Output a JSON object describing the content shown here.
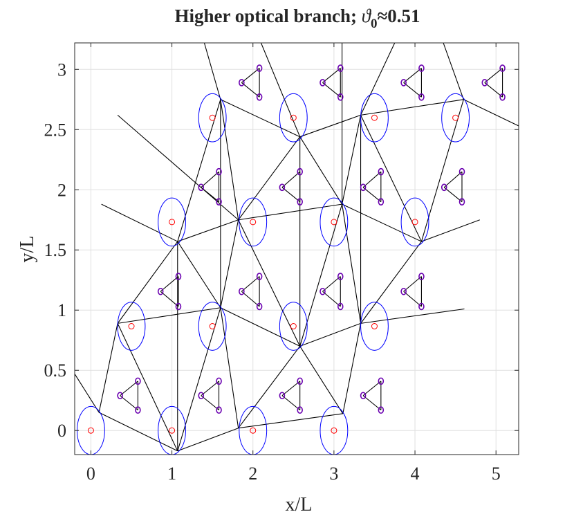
{
  "chart_data": {
    "type": "scatter",
    "title": {
      "text": "Higher optical branch; ",
      "symbol": "ϑ",
      "subscript": "0",
      "rest": "≈0.51"
    },
    "xlabel": "x/L",
    "ylabel": "y/L",
    "xlim": [
      -0.2,
      5.28
    ],
    "ylim": [
      -0.2,
      3.22
    ],
    "xticks": [
      0,
      1,
      2,
      3,
      4,
      5
    ],
    "yticks": [
      0,
      0.5,
      1,
      1.5,
      2,
      2.5,
      3
    ],
    "grid": true,
    "line_color": "#000000",
    "series": [
      {
        "marker": "ellipse",
        "color": "#0000ff",
        "rx": 0.17,
        "ry": 0.2,
        "x": [
          0,
          1,
          2,
          3,
          0.5,
          1.5,
          2.5,
          3.5,
          1,
          2,
          3,
          4,
          1.5,
          2.5,
          3.5,
          4.5
        ],
        "y": [
          0,
          0,
          0,
          0,
          0.866,
          0.866,
          0.866,
          0.866,
          1.732,
          1.732,
          1.732,
          1.732,
          2.598,
          2.598,
          2.598,
          2.598
        ]
      },
      {
        "marker": "circle",
        "color": "#ff0000",
        "x": [
          0,
          1,
          2,
          3,
          0.5,
          1.5,
          2.5,
          3.5,
          1,
          2,
          3,
          4,
          1.5,
          2.5,
          3.5,
          4.5
        ],
        "y": [
          0,
          0,
          0,
          0,
          0.866,
          0.866,
          0.866,
          0.866,
          1.732,
          1.732,
          1.732,
          1.732,
          2.598,
          2.598,
          2.598,
          2.598
        ]
      },
      {
        "marker": "dot",
        "color": "#6a00b0",
        "x": [
          0.36,
          0.58,
          0.58,
          1.36,
          1.58,
          1.58,
          2.36,
          2.58,
          2.58,
          3.36,
          3.58,
          3.58,
          0.86,
          1.08,
          1.08,
          1.86,
          2.08,
          2.08,
          2.86,
          3.08,
          3.08,
          3.86,
          4.08,
          4.08,
          1.36,
          1.58,
          1.58,
          2.36,
          2.58,
          2.58,
          3.36,
          3.58,
          3.58,
          4.36,
          4.58,
          4.58,
          1.86,
          2.08,
          2.08,
          2.86,
          3.08,
          3.08,
          3.86,
          4.08,
          4.08,
          4.86,
          5.08,
          5.08
        ],
        "y": [
          0.29,
          0.41,
          0.17,
          0.29,
          0.41,
          0.17,
          0.29,
          0.41,
          0.17,
          0.29,
          0.41,
          0.17,
          1.155,
          1.28,
          1.03,
          1.155,
          1.28,
          1.03,
          1.155,
          1.28,
          1.03,
          1.155,
          1.28,
          1.03,
          2.02,
          2.15,
          1.9,
          2.02,
          2.15,
          1.9,
          2.02,
          2.15,
          1.9,
          2.02,
          2.15,
          1.9,
          2.89,
          3.01,
          2.77,
          2.89,
          3.01,
          2.77,
          2.89,
          3.01,
          2.77,
          2.89,
          3.01,
          2.77
        ]
      }
    ],
    "segments": [
      [
        1.07,
        -0.17,
        0.1,
        0.15
      ],
      [
        1.07,
        -0.17,
        0.33,
        0.89
      ],
      [
        1.07,
        -0.17,
        1.82,
        0.02
      ],
      [
        1.07,
        -0.17,
        1.6,
        1.02
      ],
      [
        1.07,
        -0.17,
        1.07,
        1.57
      ],
      [
        0.1,
        0.15,
        0.33,
        0.89
      ],
      [
        0.1,
        0.15,
        -0.2,
        0.47
      ],
      [
        1.82,
        0.02,
        1.6,
        1.02
      ],
      [
        1.82,
        0.02,
        2.58,
        0.7
      ],
      [
        1.82,
        0.02,
        3.11,
        0.14
      ],
      [
        3.11,
        0.14,
        2.58,
        0.7
      ],
      [
        3.11,
        0.14,
        3.33,
        0.89
      ],
      [
        0.33,
        0.89,
        1.6,
        1.02
      ],
      [
        0.33,
        0.89,
        1.07,
        1.57
      ],
      [
        1.6,
        1.02,
        2.58,
        0.7
      ],
      [
        1.6,
        1.02,
        1.07,
        1.57
      ],
      [
        1.6,
        1.02,
        1.82,
        1.75
      ],
      [
        1.6,
        1.02,
        1.6,
        2.75
      ],
      [
        2.58,
        0.7,
        3.33,
        0.89
      ],
      [
        2.58,
        0.7,
        1.82,
        1.75
      ],
      [
        2.58,
        0.7,
        3.1,
        1.88
      ],
      [
        2.58,
        0.7,
        2.58,
        2.44
      ],
      [
        3.33,
        0.89,
        3.1,
        1.88
      ],
      [
        3.33,
        0.89,
        4.08,
        1.57
      ],
      [
        3.33,
        0.89,
        4.61,
        1.01
      ],
      [
        3.33,
        0.89,
        3.33,
        2.62
      ],
      [
        1.07,
        1.57,
        1.82,
        1.75
      ],
      [
        1.07,
        1.57,
        0.13,
        1.88
      ],
      [
        1.07,
        1.57,
        1.6,
        2.75
      ],
      [
        1.82,
        1.75,
        3.1,
        1.88
      ],
      [
        1.82,
        1.75,
        1.6,
        2.75
      ],
      [
        1.82,
        1.75,
        2.58,
        2.44
      ],
      [
        1.82,
        1.75,
        0.33,
        2.62
      ],
      [
        3.1,
        1.88,
        4.08,
        1.57
      ],
      [
        3.1,
        1.88,
        2.58,
        2.44
      ],
      [
        3.1,
        1.88,
        3.33,
        2.62
      ],
      [
        3.1,
        1.88,
        3.1,
        3.22
      ],
      [
        4.08,
        1.57,
        4.8,
        1.75
      ],
      [
        4.08,
        1.57,
        3.33,
        2.62
      ],
      [
        4.08,
        1.57,
        4.6,
        2.75
      ],
      [
        1.6,
        2.75,
        2.58,
        2.44
      ],
      [
        1.6,
        2.75,
        1.4,
        3.22
      ],
      [
        2.58,
        2.44,
        3.33,
        2.62
      ],
      [
        2.58,
        2.44,
        2.1,
        3.22
      ],
      [
        3.33,
        2.62,
        4.6,
        2.75
      ],
      [
        3.33,
        2.62,
        3.75,
        3.22
      ],
      [
        4.6,
        2.75,
        5.28,
        2.53
      ],
      [
        4.6,
        2.75,
        4.35,
        3.22
      ]
    ]
  }
}
